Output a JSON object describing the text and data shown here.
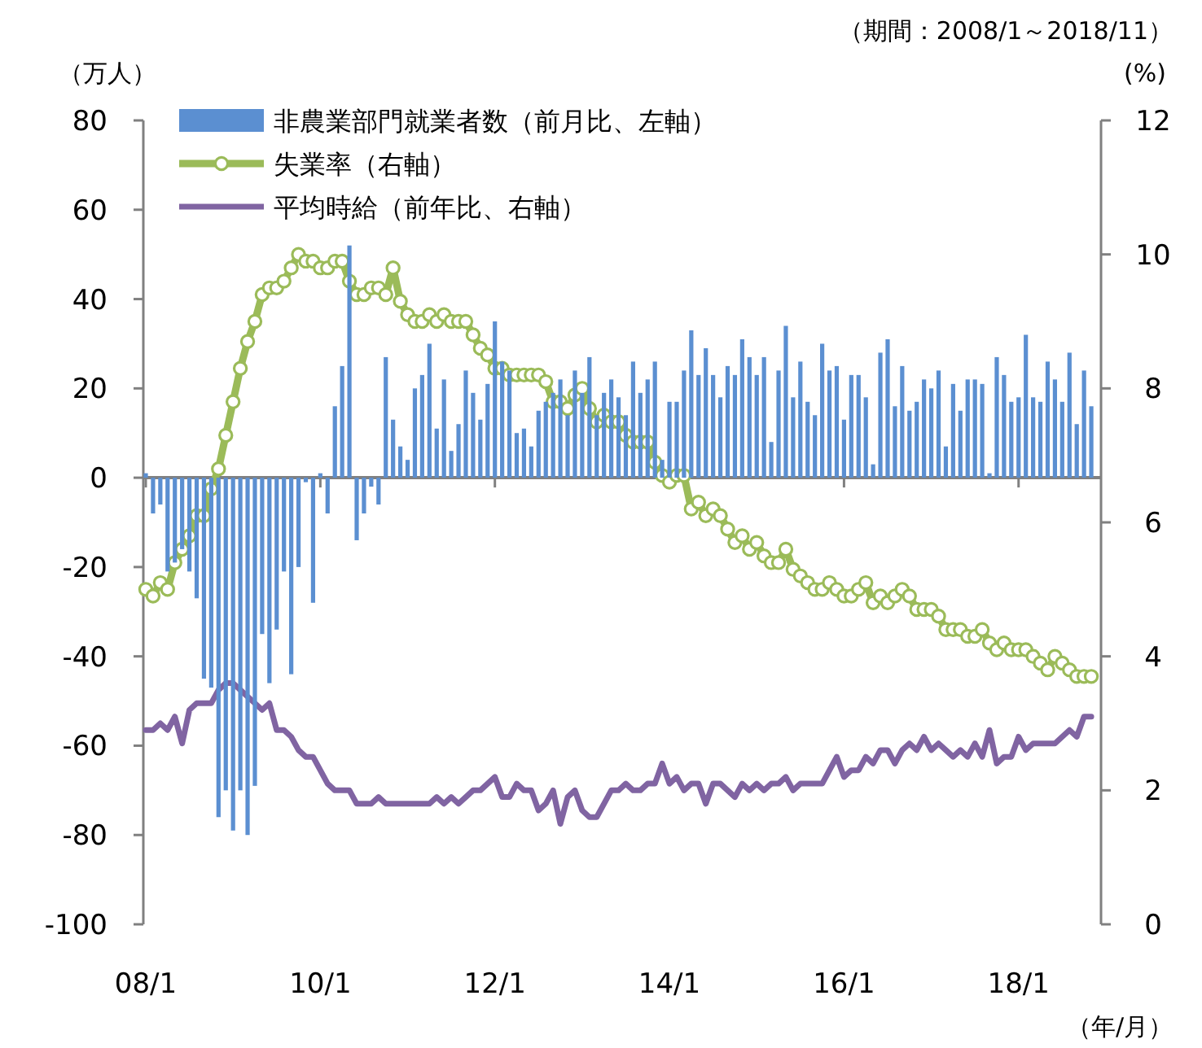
{
  "chart_data": {
    "type": "bar",
    "annotations": [
      "（期間：2008/1～2018/11）"
    ],
    "ylabel": "（万人）",
    "y2label": "(%)",
    "xlabel": "（年/月）",
    "legend": "top left",
    "categories": [
      "08/1",
      null,
      null,
      null,
      null,
      null,
      null,
      null,
      null,
      null,
      null,
      null,
      null,
      null,
      null,
      null,
      null,
      null,
      null,
      null,
      null,
      null,
      null,
      null,
      "10/1",
      null,
      null,
      null,
      null,
      null,
      null,
      null,
      null,
      null,
      null,
      null,
      null,
      null,
      null,
      null,
      null,
      null,
      null,
      null,
      null,
      null,
      null,
      null,
      "12/1",
      null,
      null,
      null,
      null,
      null,
      null,
      null,
      null,
      null,
      null,
      null,
      null,
      null,
      null,
      null,
      null,
      null,
      null,
      null,
      null,
      null,
      null,
      null,
      "14/1",
      null,
      null,
      null,
      null,
      null,
      null,
      null,
      null,
      null,
      null,
      null,
      null,
      null,
      null,
      null,
      null,
      null,
      null,
      null,
      null,
      null,
      null,
      null,
      "16/1",
      null,
      null,
      null,
      null,
      null,
      null,
      null,
      null,
      null,
      null,
      null,
      null,
      null,
      null,
      null,
      null,
      null,
      null,
      null,
      null,
      null,
      null,
      null,
      "18/1",
      null,
      null,
      null,
      null,
      null,
      null,
      null,
      null,
      null,
      null
    ],
    "ylim": [
      -100,
      80
    ],
    "yticks": [
      -100,
      -80,
      -60,
      -40,
      -20,
      0,
      20,
      40,
      60,
      80
    ],
    "y2lim": [
      0,
      12
    ],
    "y2ticks": [
      0,
      2,
      4,
      6,
      8,
      10,
      12
    ],
    "series": [
      {
        "name": "非農業部門就業者数（前月比、左軸）",
        "color": "#5b8fd1",
        "values": [
          1,
          -8,
          -6,
          -21,
          -19,
          -16,
          -21,
          -27,
          -45,
          -47,
          -76,
          -70,
          -79,
          -70,
          -80,
          -69,
          -35,
          -46,
          -34,
          -21,
          -44,
          -20,
          -1,
          -28,
          1,
          -8,
          16,
          25,
          52,
          -14,
          -8,
          -2,
          -6,
          27,
          13,
          7,
          4,
          20,
          23,
          30,
          11,
          22,
          6,
          12,
          24,
          19,
          13,
          21,
          35,
          26,
          24,
          10,
          11,
          7,
          15,
          17,
          19,
          22,
          14,
          24,
          19,
          27,
          14,
          19,
          22,
          18,
          14,
          26,
          19,
          22,
          26,
          4,
          17,
          17,
          24,
          33,
          23,
          29,
          23,
          18,
          25,
          23,
          31,
          27,
          23,
          27,
          8,
          24,
          34,
          18,
          26,
          17,
          14,
          30,
          24,
          25,
          13,
          23,
          23,
          18,
          3,
          28,
          31,
          16,
          25,
          15,
          17,
          22,
          20,
          24,
          7,
          21,
          15,
          22,
          22,
          21,
          1,
          27,
          23,
          17,
          18,
          32,
          18,
          17,
          26,
          22,
          17,
          28,
          12,
          24,
          16
        ]
      },
      {
        "name": "失業率（右軸）",
        "type": "line",
        "axis": "y2",
        "color": "#9bbb59",
        "marker": "circle",
        "values": [
          5.0,
          4.9,
          5.1,
          5.0,
          5.4,
          5.6,
          5.8,
          6.1,
          6.1,
          6.5,
          6.8,
          7.3,
          7.8,
          8.3,
          8.7,
          9.0,
          9.4,
          9.5,
          9.5,
          9.6,
          9.8,
          10.0,
          9.9,
          9.9,
          9.8,
          9.8,
          9.9,
          9.9,
          9.6,
          9.4,
          9.4,
          9.5,
          9.5,
          9.4,
          9.8,
          9.3,
          9.1,
          9.0,
          9.0,
          9.1,
          9.0,
          9.1,
          9.0,
          9.0,
          9.0,
          8.8,
          8.6,
          8.5,
          8.3,
          8.3,
          8.2,
          8.2,
          8.2,
          8.2,
          8.2,
          8.1,
          7.8,
          7.8,
          7.7,
          7.9,
          8.0,
          7.7,
          7.5,
          7.6,
          7.5,
          7.5,
          7.3,
          7.2,
          7.2,
          7.2,
          6.9,
          6.7,
          6.6,
          6.7,
          6.7,
          6.2,
          6.3,
          6.1,
          6.2,
          6.1,
          5.9,
          5.7,
          5.8,
          5.6,
          5.7,
          5.5,
          5.4,
          5.4,
          5.6,
          5.3,
          5.2,
          5.1,
          5.0,
          5.0,
          5.1,
          5.0,
          4.9,
          4.9,
          5.0,
          5.1,
          4.8,
          4.9,
          4.8,
          4.9,
          5.0,
          4.9,
          4.7,
          4.7,
          4.7,
          4.6,
          4.4,
          4.4,
          4.4,
          4.3,
          4.3,
          4.4,
          4.2,
          4.1,
          4.2,
          4.1,
          4.1,
          4.1,
          4.0,
          3.9,
          3.8,
          4.0,
          3.9,
          3.8,
          3.7,
          3.7,
          3.7
        ]
      },
      {
        "name": "平均時給（前年比、右軸）",
        "type": "line",
        "axis": "y2",
        "color": "#8064a2",
        "marker": "none",
        "values": [
          2.9,
          2.9,
          3.0,
          2.9,
          3.1,
          2.7,
          3.2,
          3.3,
          3.3,
          3.3,
          3.5,
          3.6,
          3.6,
          3.5,
          3.4,
          3.3,
          3.2,
          3.3,
          2.9,
          2.9,
          2.8,
          2.6,
          2.5,
          2.5,
          2.3,
          2.1,
          2.0,
          2.0,
          2.0,
          1.8,
          1.8,
          1.8,
          1.9,
          1.8,
          1.8,
          1.8,
          1.8,
          1.8,
          1.8,
          1.8,
          1.9,
          1.8,
          1.9,
          1.8,
          1.9,
          2.0,
          2.0,
          2.1,
          2.2,
          1.9,
          1.9,
          2.1,
          2.0,
          2.0,
          1.7,
          1.8,
          2.0,
          1.5,
          1.9,
          2.0,
          1.7,
          1.6,
          1.6,
          1.8,
          2.0,
          2.0,
          2.1,
          2.0,
          2.0,
          2.1,
          2.1,
          2.4,
          2.1,
          2.2,
          2.0,
          2.1,
          2.1,
          1.8,
          2.1,
          2.1,
          2.0,
          1.9,
          2.1,
          2.0,
          2.1,
          2.0,
          2.1,
          2.1,
          2.2,
          2.0,
          2.1,
          2.1,
          2.1,
          2.1,
          2.3,
          2.5,
          2.2,
          2.3,
          2.3,
          2.5,
          2.4,
          2.6,
          2.6,
          2.4,
          2.6,
          2.7,
          2.6,
          2.8,
          2.6,
          2.7,
          2.6,
          2.5,
          2.6,
          2.5,
          2.7,
          2.5,
          2.9,
          2.4,
          2.5,
          2.5,
          2.8,
          2.6,
          2.7,
          2.7,
          2.7,
          2.7,
          2.8,
          2.9,
          2.8,
          3.1,
          3.1
        ]
      }
    ]
  }
}
